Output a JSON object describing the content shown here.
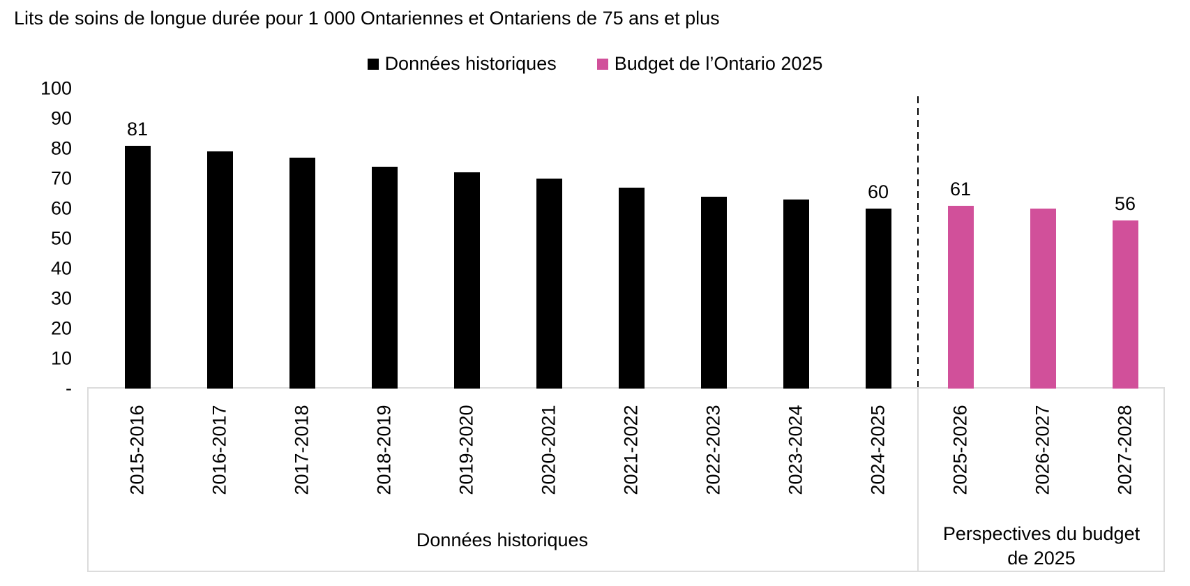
{
  "chart_data": {
    "type": "bar",
    "title": "Lits de soins de longue durée pour 1 000 Ontariennes et Ontariens de 75 ans et plus",
    "legend_position": "top",
    "grid": false,
    "ylim": [
      0,
      100
    ],
    "ytick_interval": 10,
    "yticks": [
      {
        "value": 100,
        "label": "100"
      },
      {
        "value": 90,
        "label": "90"
      },
      {
        "value": 80,
        "label": "80"
      },
      {
        "value": 70,
        "label": "70"
      },
      {
        "value": 60,
        "label": "60"
      },
      {
        "value": 50,
        "label": "50"
      },
      {
        "value": 40,
        "label": "40"
      },
      {
        "value": 30,
        "label": "30"
      },
      {
        "value": 20,
        "label": "20"
      },
      {
        "value": 10,
        "label": "10"
      },
      {
        "value": 0,
        "label": "-"
      }
    ],
    "series": [
      {
        "name": "Données historiques",
        "color": "#000000"
      },
      {
        "name": "Budget de l’Ontario 2025",
        "color": "#D1509A"
      }
    ],
    "bars": [
      {
        "category": "2015-2016",
        "value": 81,
        "series": 0,
        "data_label": "81"
      },
      {
        "category": "2016-2017",
        "value": 79,
        "series": 0
      },
      {
        "category": "2017-2018",
        "value": 77,
        "series": 0
      },
      {
        "category": "2018-2019",
        "value": 74,
        "series": 0
      },
      {
        "category": "2019-2020",
        "value": 72,
        "series": 0
      },
      {
        "category": "2020-2021",
        "value": 70,
        "series": 0
      },
      {
        "category": "2021-2022",
        "value": 67,
        "series": 0
      },
      {
        "category": "2022-2023",
        "value": 64,
        "series": 0
      },
      {
        "category": "2023-2024",
        "value": 63,
        "series": 0
      },
      {
        "category": "2024-2025",
        "value": 60,
        "series": 0,
        "data_label": "60"
      },
      {
        "category": "2025-2026",
        "value": 61,
        "series": 1,
        "data_label": "61"
      },
      {
        "category": "2026-2027",
        "value": 60,
        "series": 1
      },
      {
        "category": "2027-2028",
        "value": 56,
        "series": 1,
        "data_label": "56"
      }
    ],
    "separator_after": "2024-2025",
    "x_group_labels": [
      {
        "label": "Données historiques",
        "span": [
          "2015-2016",
          "2024-2025"
        ]
      },
      {
        "label": "Perspectives du budget de 2025",
        "span": [
          "2025-2026",
          "2027-2028"
        ]
      }
    ]
  }
}
